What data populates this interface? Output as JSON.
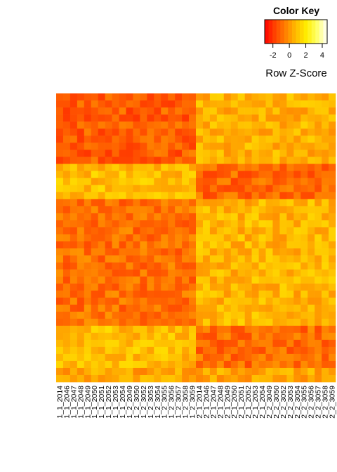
{
  "chart_data": {
    "type": "heatmap",
    "color_key": {
      "title": "Color Key",
      "xlabel": "Row Z-Score",
      "range": [
        -3,
        4.6
      ],
      "ticks": [
        -2,
        0,
        2,
        4
      ],
      "tick_labels": [
        "-2",
        "0",
        "2",
        "4"
      ],
      "palette": [
        "#ff0000",
        "#ff4400",
        "#ff8000",
        "#ffbb00",
        "#ffee00",
        "#ffff66",
        "#ffffff"
      ]
    },
    "x_labels": [
      "1_1_2014",
      "1_1_2046",
      "1_1_2047",
      "1_1_2048",
      "1_1_2049",
      "1_1_2050",
      "1_1_2051",
      "1_1_2052",
      "1_1_2053",
      "1_1_2054",
      "1_2_2049",
      "1_2_3050",
      "1_2_3052",
      "1_2_3053",
      "1_2_3054",
      "1_2_3055",
      "1_2_3056",
      "1_2_3057",
      "1_2_3058",
      "1_2_3059",
      "2_1_2014",
      "2_1_2046",
      "2_1_2047",
      "2_1_2048",
      "2_1_2049",
      "2_1_2050",
      "2_1_2051",
      "2_1_2052",
      "2_1_2053",
      "2_1_2054",
      "2_2_3049",
      "2_2_3050",
      "2_2_3052",
      "2_2_3053",
      "2_2_3054",
      "2_2_3055",
      "2_2_3056",
      "2_2_3057",
      "2_2_3058",
      "2_2_3059"
    ],
    "n_rows": 41,
    "row_blocks": [
      {
        "rows": 10,
        "group1_mean": -1.2,
        "group2_mean": 0.6
      },
      {
        "rows": 5,
        "group1_mean": 0.9,
        "group2_mean": -1.0
      },
      {
        "rows": 18,
        "group1_mean": -0.8,
        "group2_mean": 0.7
      },
      {
        "rows": 6,
        "group1_mean": 0.9,
        "group2_mean": -0.9
      },
      {
        "rows": 2,
        "group1_mean": 0.3,
        "group2_mean": 0.4
      }
    ]
  }
}
